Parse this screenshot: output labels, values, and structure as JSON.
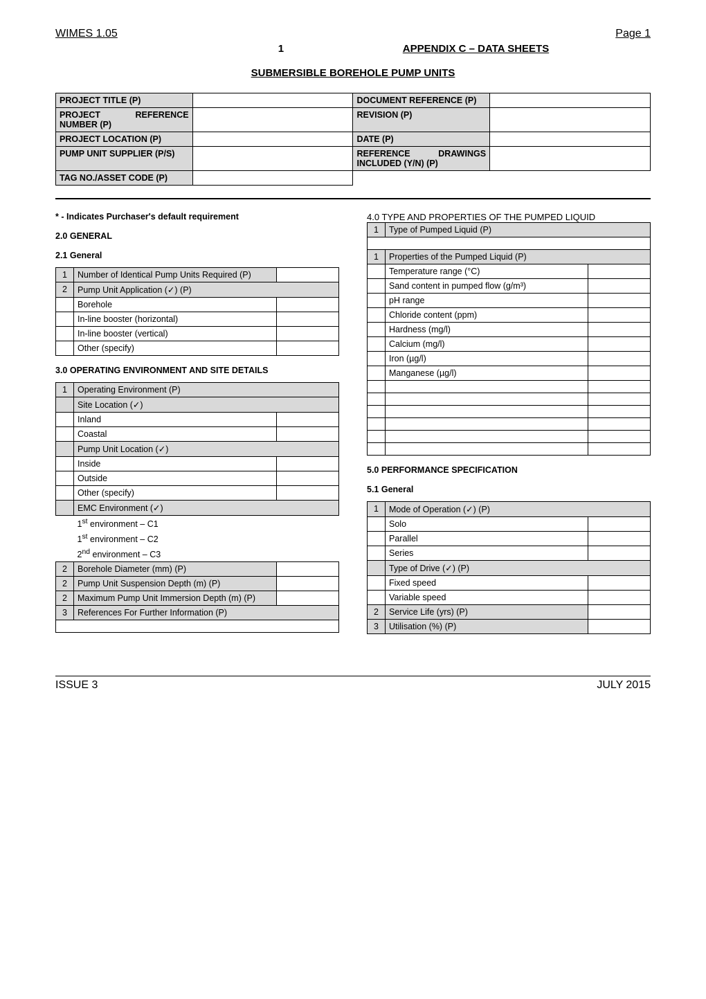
{
  "header": {
    "left": "WIMES 1.05",
    "right": "Page 1"
  },
  "appendix": {
    "num": "1",
    "title": "APPENDIX C – DATA SHEETS"
  },
  "mainTitle": "SUBMERSIBLE BOREHOLE PUMP UNITS",
  "project": {
    "r1l": "PROJECT TITLE (P)",
    "r1r": "DOCUMENT REFERENCE (P)",
    "r2l": "PROJECT REFERENCE NUMBER (P)",
    "r2r": "REVISION (P)",
    "r3l": "PROJECT LOCATION (P)",
    "r3r": "DATE (P)",
    "r4l": "PUMP UNIT SUPPLIER (P/S)",
    "r4r": "REFERENCE DRAWINGS INCLUDED (Y/N) (P)",
    "r5l": "TAG NO./ASSET CODE (P)"
  },
  "note": "* - Indicates Purchaser's default requirement",
  "s20": "2.0 GENERAL",
  "s21": "2.1 General",
  "t21": {
    "r1n": "1",
    "r1": "Number of Identical Pump Units Required (P)",
    "r2n": "2",
    "r2": "Pump Unit Application (✓) (P)",
    "r3": "Borehole",
    "r4": "In-line booster (horizontal)",
    "r5": "In-line booster (vertical)",
    "r6": "Other (specify)"
  },
  "s30": "3.0 OPERATING ENVIRONMENT AND SITE DETAILS",
  "t30": {
    "r1n": "1",
    "r1": "Operating Environment (P)",
    "r2": "Site Location (✓)",
    "r3": "Inland",
    "r4": "Coastal",
    "r5": "Pump Unit Location (✓)",
    "r6": "Inside",
    "r7": "Outside",
    "r8": "Other (specify)",
    "r9": "EMC Environment (✓)",
    "r10": "1st environment – C1",
    "r11": "1st environment – C2",
    "r12": "2nd environment – C3",
    "r13n": "2",
    "r13": "Borehole Diameter (mm) (P)",
    "r14n": "2",
    "r14": "Pump Unit Suspension Depth (m) (P)",
    "r15n": "2",
    "r15": "Maximum Pump Unit Immersion Depth (m) (P)",
    "r16n": "3",
    "r16": "References For Further Information (P)"
  },
  "s40": "4.0 TYPE AND PROPERTIES OF THE PUMPED LIQUID",
  "t40": {
    "r1n": "1",
    "r1": "Type of Pumped Liquid (P)",
    "r3n": "1",
    "r3": "Properties of the Pumped Liquid (P)",
    "r4": "Temperature range (°C)",
    "r5": "Sand content in pumped flow (g/m³)",
    "r6": "pH range",
    "r7": "Chloride content (ppm)",
    "r8": "Hardness (mg/l)",
    "r9": "Calcium (mg/l)",
    "r10": "Iron (µg/l)",
    "r11": "Manganese (µg/l)"
  },
  "s50": "5.0 PERFORMANCE SPECIFICATION",
  "s51": "5.1 General",
  "t51": {
    "r1n": "1",
    "r1": "Mode of Operation (✓) (P)",
    "r2": "Solo",
    "r3": "Parallel",
    "r4": "Series",
    "r5": "Type of Drive (✓) (P)",
    "r6": "Fixed speed",
    "r7": "Variable speed",
    "r8n": "2",
    "r8": "Service Life (yrs) (P)",
    "r9n": "3",
    "r9": "Utilisation (%) (P)"
  },
  "footer": {
    "left": "ISSUE 3",
    "right": "JULY 2015"
  }
}
